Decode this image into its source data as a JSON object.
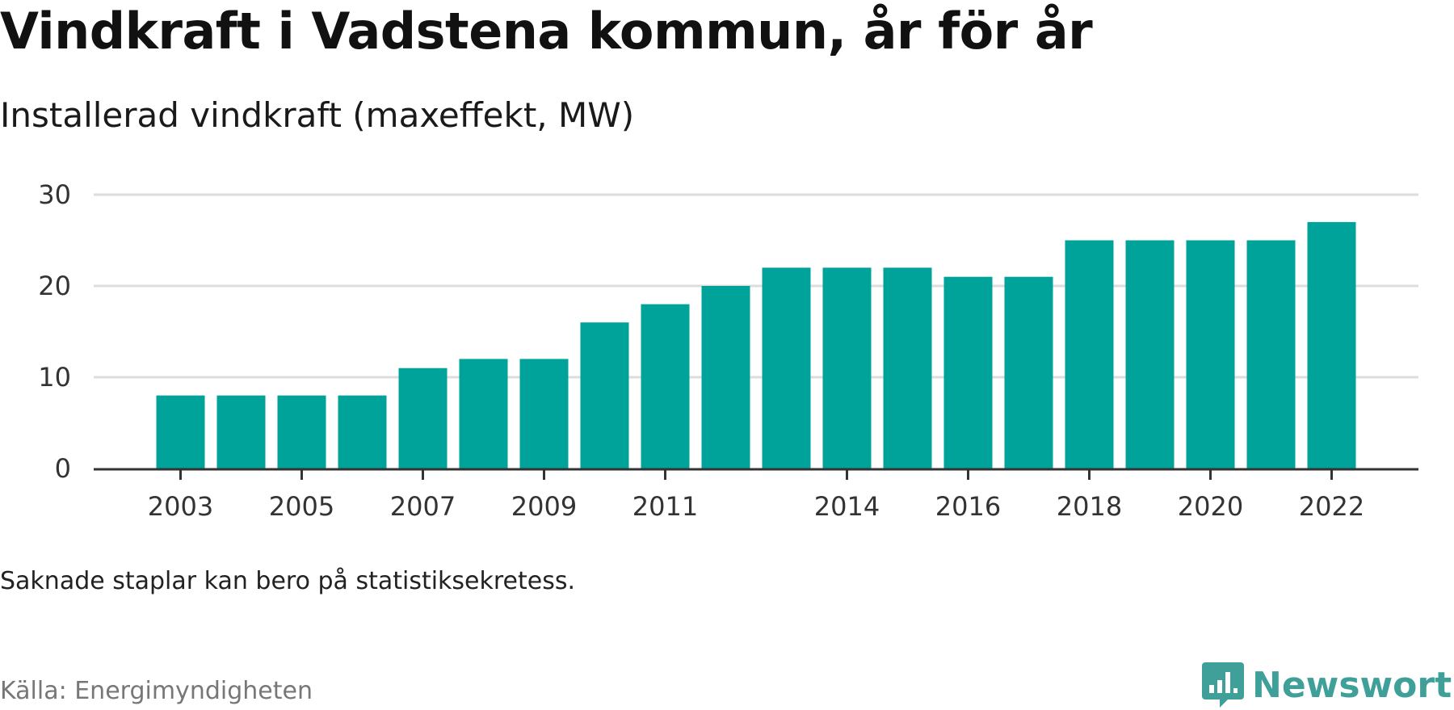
{
  "title": "Vindkraft i Vadstena kommun, år för år",
  "subtitle": "Installerad vindkraft (maxeffekt, MW)",
  "note": "Saknade staplar kan bero på statistiksekretess.",
  "source": "Källa: Energimyndigheten",
  "brand": {
    "name": "Newsworthy",
    "icon": "newsworthy-logo-icon",
    "color": "#3fa09a"
  },
  "chart_data": {
    "type": "bar",
    "categories": [
      "2003",
      "2004",
      "2005",
      "2006",
      "2007",
      "2008",
      "2009",
      "2010",
      "2011",
      "2012",
      "2013",
      "2014",
      "2015",
      "2016",
      "2017",
      "2018",
      "2019",
      "2020",
      "2021",
      "2022"
    ],
    "values": [
      8,
      8,
      8,
      8,
      11,
      12,
      12,
      16,
      18,
      20,
      22,
      22,
      22,
      21,
      21,
      25,
      25,
      25,
      25,
      27
    ],
    "x_tick_labels": [
      "2003",
      "2005",
      "2007",
      "2009",
      "2011",
      "2014",
      "2016",
      "2018",
      "2020",
      "2022"
    ],
    "y_ticks": [
      0,
      10,
      20,
      30
    ],
    "ylim": [
      0,
      30
    ],
    "grid": true,
    "legend": "none",
    "xlabel": "",
    "ylabel": "",
    "bar_color": "#00a39a",
    "grid_color": "#dddddd",
    "axis_color": "#333333"
  }
}
